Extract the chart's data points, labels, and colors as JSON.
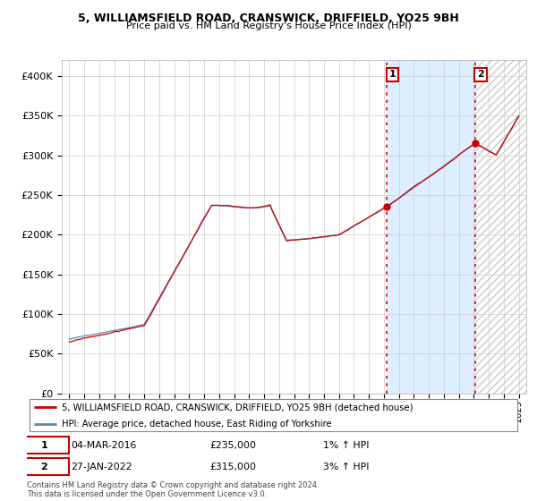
{
  "title": "5, WILLIAMSFIELD ROAD, CRANSWICK, DRIFFIELD, YO25 9BH",
  "subtitle": "Price paid vs. HM Land Registry's House Price Index (HPI)",
  "legend_line1": "5, WILLIAMSFIELD ROAD, CRANSWICK, DRIFFIELD, YO25 9BH (detached house)",
  "legend_line2": "HPI: Average price, detached house, East Riding of Yorkshire",
  "annotation1_date": "04-MAR-2016",
  "annotation1_price": "£235,000",
  "annotation1_hpi": "1% ↑ HPI",
  "annotation2_date": "27-JAN-2022",
  "annotation2_price": "£315,000",
  "annotation2_hpi": "3% ↑ HPI",
  "footer": "Contains HM Land Registry data © Crown copyright and database right 2024.\nThis data is licensed under the Open Government Licence v3.0.",
  "ylim": [
    0,
    420000
  ],
  "yticks": [
    0,
    50000,
    100000,
    150000,
    200000,
    250000,
    300000,
    350000,
    400000
  ],
  "ytick_labels": [
    "£0",
    "£50K",
    "£100K",
    "£150K",
    "£200K",
    "£250K",
    "£300K",
    "£350K",
    "£400K"
  ],
  "line_color_red": "#cc0000",
  "line_color_blue": "#5588bb",
  "vline_color": "#cc0000",
  "shade_between_color": "#ddeeff",
  "bg_color": "#ffffff",
  "sale1_year": 2016.17,
  "sale1_value": 235000,
  "sale2_year": 2022.07,
  "sale2_value": 315000,
  "xmin": 1995,
  "xmax": 2025
}
